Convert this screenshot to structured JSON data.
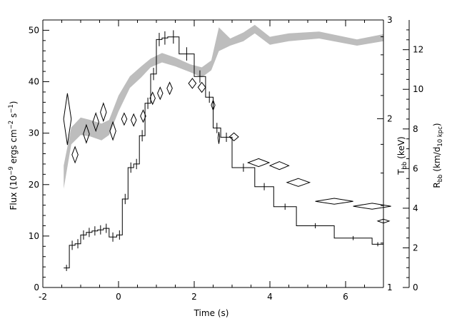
{
  "chart_data": {
    "type": "line",
    "xlabel": "Time (s)",
    "xlim": [
      -2,
      7
    ],
    "x_ticks": [
      "-2",
      "0",
      "2",
      "4",
      "6"
    ],
    "ylabel": {
      "main": "Flux (10",
      "sup1": "−9",
      "mid": " ergs cm",
      "sup2": "−2",
      "mid2": " s",
      "sup3": "−1",
      "end": ")"
    },
    "ylim": [
      0,
      52
    ],
    "y_ticks": [
      "0",
      "10",
      "20",
      "30",
      "40",
      "50"
    ],
    "right_axis_1": {
      "label_main": "T",
      "label_sub": "bb",
      "label_end": " (keV)",
      "scale": "log",
      "range": [
        1,
        3
      ],
      "ticks": [
        "1",
        "2",
        "3"
      ]
    },
    "right_axis_2": {
      "label_main": "R",
      "label_sub": "bb",
      "label_mid": " (km/d",
      "label_sub2": "10 kpc",
      "label_end": ")",
      "range": [
        0,
        13.5
      ],
      "ticks": [
        "0",
        "2",
        "4",
        "6",
        "8",
        "10",
        "12"
      ]
    },
    "series": [
      {
        "kind": "flux_histogram",
        "bins": [
          {
            "x0": -1.45,
            "x1": -1.3,
            "y": 3.8,
            "yerr": 0.6
          },
          {
            "x0": -1.3,
            "x1": -1.15,
            "y": 8.2,
            "yerr": 0.9
          },
          {
            "x0": -1.15,
            "x1": -1.0,
            "y": 8.5,
            "yerr": 0.9
          },
          {
            "x0": -1.0,
            "x1": -0.85,
            "y": 10.2,
            "yerr": 0.9
          },
          {
            "x0": -0.85,
            "x1": -0.7,
            "y": 10.7,
            "yerr": 0.9
          },
          {
            "x0": -0.7,
            "x1": -0.55,
            "y": 11.0,
            "yerr": 0.9
          },
          {
            "x0": -0.55,
            "x1": -0.4,
            "y": 11.2,
            "yerr": 0.9
          },
          {
            "x0": -0.4,
            "x1": -0.25,
            "y": 11.5,
            "yerr": 0.9
          },
          {
            "x0": -0.25,
            "x1": -0.05,
            "y": 9.8,
            "yerr": 0.9
          },
          {
            "x0": -0.05,
            "x1": 0.1,
            "y": 10.2,
            "yerr": 0.9
          },
          {
            "x0": 0.1,
            "x1": 0.25,
            "y": 17.2,
            "yerr": 1.0
          },
          {
            "x0": 0.25,
            "x1": 0.4,
            "y": 23.3,
            "yerr": 1.0
          },
          {
            "x0": 0.4,
            "x1": 0.55,
            "y": 24.0,
            "yerr": 1.0
          },
          {
            "x0": 0.55,
            "x1": 0.7,
            "y": 29.5,
            "yerr": 1.1
          },
          {
            "x0": 0.7,
            "x1": 0.85,
            "y": 35.8,
            "yerr": 1.1
          },
          {
            "x0": 0.85,
            "x1": 1.0,
            "y": 41.5,
            "yerr": 1.2
          },
          {
            "x0": 1.0,
            "x1": 1.15,
            "y": 48.2,
            "yerr": 1.3
          },
          {
            "x0": 1.15,
            "x1": 1.3,
            "y": 48.5,
            "yerr": 1.3
          },
          {
            "x0": 1.3,
            "x1": 1.6,
            "y": 48.7,
            "yerr": 1.3
          },
          {
            "x0": 1.6,
            "x1": 2.0,
            "y": 45.4,
            "yerr": 1.3
          },
          {
            "x0": 2.0,
            "x1": 2.3,
            "y": 41.0,
            "yerr": 1.2
          },
          {
            "x0": 2.3,
            "x1": 2.5,
            "y": 37.0,
            "yerr": 1.1
          },
          {
            "x0": 2.5,
            "x1": 2.7,
            "y": 31.0,
            "yerr": 1.0
          },
          {
            "x0": 2.7,
            "x1": 3.0,
            "y": 29.2,
            "yerr": 0.9
          },
          {
            "x0": 3.0,
            "x1": 3.6,
            "y": 23.3,
            "yerr": 0.8
          },
          {
            "x0": 3.6,
            "x1": 4.1,
            "y": 19.6,
            "yerr": 0.7
          },
          {
            "x0": 4.1,
            "x1": 4.7,
            "y": 15.7,
            "yerr": 0.6
          },
          {
            "x0": 4.7,
            "x1": 5.7,
            "y": 12.0,
            "yerr": 0.5
          },
          {
            "x0": 5.7,
            "x1": 6.7,
            "y": 9.6,
            "yerr": 0.4
          },
          {
            "x0": 6.7,
            "x1": 7.0,
            "y": 8.4,
            "yerr": 0.4
          }
        ]
      },
      {
        "kind": "radius_diamonds",
        "unit": "R_bb (km/d_10kpc)",
        "points": [
          {
            "x": -1.35,
            "y": 8.5,
            "xerr": 0.1,
            "yerr": 1.3
          },
          {
            "x": -1.15,
            "y": 6.7,
            "xerr": 0.08,
            "yerr": 0.4
          },
          {
            "x": -0.85,
            "y": 7.75,
            "xerr": 0.08,
            "yerr": 0.45
          },
          {
            "x": -0.6,
            "y": 8.35,
            "xerr": 0.08,
            "yerr": 0.45
          },
          {
            "x": -0.4,
            "y": 8.85,
            "xerr": 0.08,
            "yerr": 0.45
          },
          {
            "x": -0.15,
            "y": 7.9,
            "xerr": 0.08,
            "yerr": 0.45
          },
          {
            "x": 0.15,
            "y": 8.5,
            "xerr": 0.07,
            "yerr": 0.3
          },
          {
            "x": 0.4,
            "y": 8.45,
            "xerr": 0.07,
            "yerr": 0.3
          },
          {
            "x": 0.65,
            "y": 8.65,
            "xerr": 0.07,
            "yerr": 0.3
          },
          {
            "x": 0.9,
            "y": 9.55,
            "xerr": 0.07,
            "yerr": 0.3
          },
          {
            "x": 1.1,
            "y": 9.8,
            "xerr": 0.07,
            "yerr": 0.3
          },
          {
            "x": 1.35,
            "y": 10.05,
            "xerr": 0.07,
            "yerr": 0.3
          },
          {
            "x": 1.95,
            "y": 10.3,
            "xerr": 0.1,
            "yerr": 0.25
          },
          {
            "x": 2.2,
            "y": 10.1,
            "xerr": 0.1,
            "yerr": 0.25
          },
          {
            "x": 2.5,
            "y": 9.2,
            "xerr": 0.05,
            "yerr": 0.25
          },
          {
            "x": 2.65,
            "y": 7.55,
            "xerr": 0.02,
            "yerr": 0.3
          },
          {
            "x": 3.05,
            "y": 7.6,
            "xerr": 0.12,
            "yerr": 0.2
          },
          {
            "x": 3.7,
            "y": 6.3,
            "xerr": 0.28,
            "yerr": 0.2
          },
          {
            "x": 4.25,
            "y": 6.15,
            "xerr": 0.25,
            "yerr": 0.2
          },
          {
            "x": 4.75,
            "y": 5.3,
            "xerr": 0.3,
            "yerr": 0.2
          },
          {
            "x": 5.7,
            "y": 4.35,
            "xerr": 0.5,
            "yerr": 0.15
          },
          {
            "x": 6.7,
            "y": 4.1,
            "xerr": 0.5,
            "yerr": 0.15
          },
          {
            "x": 7.0,
            "y": 3.35,
            "xerr": 0.15,
            "yerr": 0.1
          }
        ]
      },
      {
        "kind": "temperature_band",
        "unit": "T_bb (keV)",
        "color": "#bdbdbd",
        "upper": [
          [
            -1.45,
            1.65
          ],
          [
            -1.25,
            1.93
          ],
          [
            -1.0,
            2.01
          ],
          [
            -0.75,
            1.99
          ],
          [
            -0.45,
            1.96
          ],
          [
            -0.25,
            1.99
          ],
          [
            0.0,
            2.2
          ],
          [
            0.3,
            2.38
          ],
          [
            0.6,
            2.48
          ],
          [
            0.85,
            2.56
          ],
          [
            1.15,
            2.62
          ],
          [
            1.5,
            2.57
          ],
          [
            1.9,
            2.5
          ],
          [
            2.2,
            2.47
          ],
          [
            2.45,
            2.54
          ],
          [
            2.65,
            2.91
          ],
          [
            2.95,
            2.78
          ],
          [
            3.3,
            2.85
          ],
          [
            3.6,
            2.94
          ],
          [
            4.0,
            2.8
          ],
          [
            4.5,
            2.84
          ],
          [
            5.3,
            2.86
          ],
          [
            6.3,
            2.77
          ],
          [
            7.0,
            2.83
          ]
        ],
        "lower": [
          [
            -1.45,
            1.5
          ],
          [
            -1.25,
            1.8
          ],
          [
            -1.0,
            1.87
          ],
          [
            -0.75,
            1.86
          ],
          [
            -0.45,
            1.83
          ],
          [
            -0.25,
            1.87
          ],
          [
            0.0,
            2.06
          ],
          [
            0.3,
            2.27
          ],
          [
            0.6,
            2.37
          ],
          [
            0.85,
            2.47
          ],
          [
            1.15,
            2.52
          ],
          [
            1.5,
            2.48
          ],
          [
            1.9,
            2.42
          ],
          [
            2.2,
            2.37
          ],
          [
            2.45,
            2.44
          ],
          [
            2.65,
            2.64
          ],
          [
            2.95,
            2.7
          ],
          [
            3.3,
            2.75
          ],
          [
            3.6,
            2.84
          ],
          [
            4.0,
            2.71
          ],
          [
            4.5,
            2.75
          ],
          [
            5.3,
            2.78
          ],
          [
            6.3,
            2.7
          ],
          [
            7.0,
            2.75
          ]
        ]
      }
    ],
    "grid": false,
    "legend": "none"
  }
}
